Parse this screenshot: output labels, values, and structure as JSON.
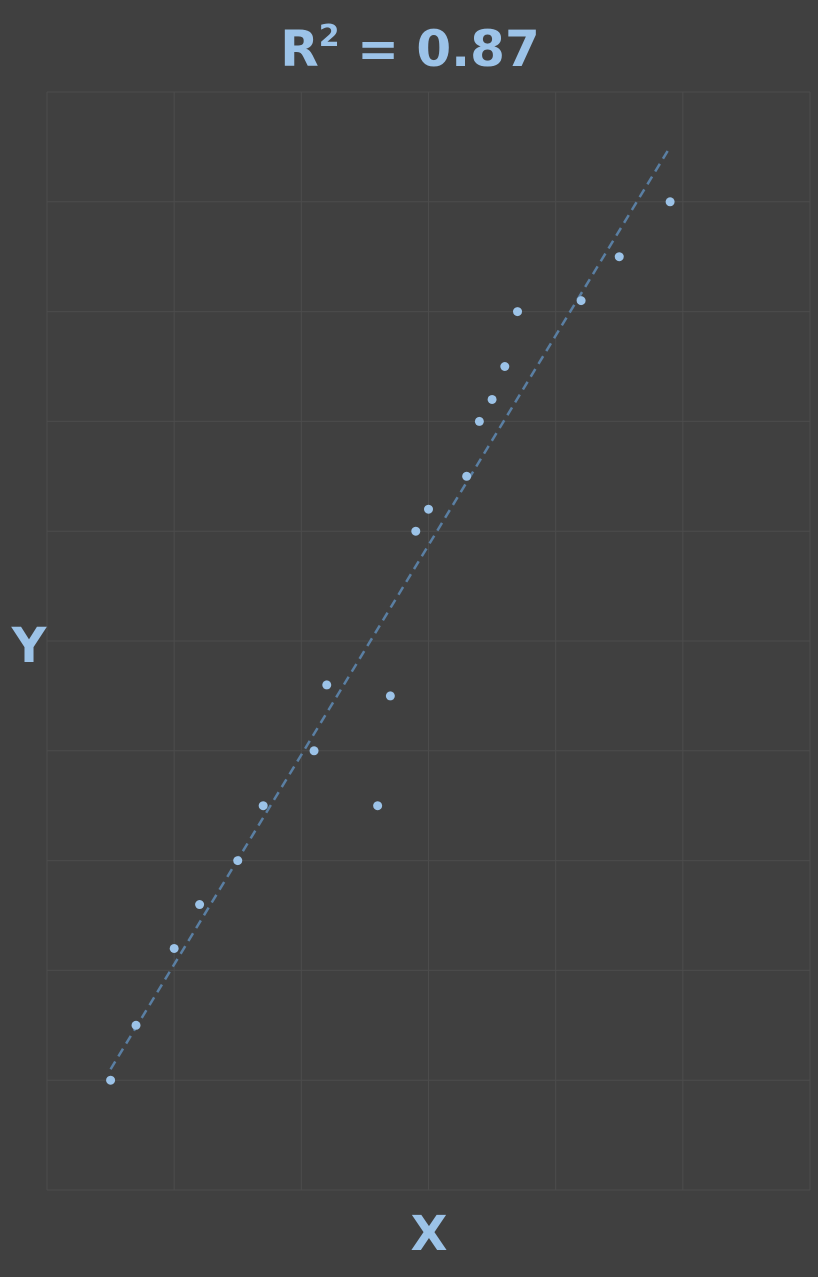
{
  "chart_data": {
    "type": "scatter",
    "title": "R",
    "title_sup": "2",
    "title_rest": " = 0.87",
    "xlabel": "X",
    "ylabel": "Y",
    "xlim": [
      0,
      6
    ],
    "ylim": [
      0,
      10
    ],
    "grid": true,
    "colors": {
      "background": "#404040",
      "grid": "#4c4c4c",
      "point": "#9cc3e8",
      "trendline": "#5a7fa3",
      "label": "#9cc3e8"
    },
    "points": [
      {
        "x": 0.5,
        "y": 1.0
      },
      {
        "x": 0.7,
        "y": 1.5
      },
      {
        "x": 1.0,
        "y": 2.2
      },
      {
        "x": 1.2,
        "y": 2.6
      },
      {
        "x": 1.5,
        "y": 3.0
      },
      {
        "x": 1.7,
        "y": 3.5
      },
      {
        "x": 2.1,
        "y": 4.0
      },
      {
        "x": 2.2,
        "y": 4.6
      },
      {
        "x": 2.6,
        "y": 3.5
      },
      {
        "x": 2.7,
        "y": 4.5
      },
      {
        "x": 2.9,
        "y": 6.0
      },
      {
        "x": 3.0,
        "y": 6.2
      },
      {
        "x": 3.3,
        "y": 6.5
      },
      {
        "x": 3.4,
        "y": 7.0
      },
      {
        "x": 3.5,
        "y": 7.2
      },
      {
        "x": 3.6,
        "y": 7.5
      },
      {
        "x": 3.7,
        "y": 8.0
      },
      {
        "x": 4.2,
        "y": 8.1
      },
      {
        "x": 4.5,
        "y": 8.5
      },
      {
        "x": 4.9,
        "y": 9.0
      }
    ],
    "trendline": {
      "style": "dashed",
      "x": [
        0.5,
        4.9
      ],
      "y": [
        1.1,
        9.5
      ]
    }
  }
}
